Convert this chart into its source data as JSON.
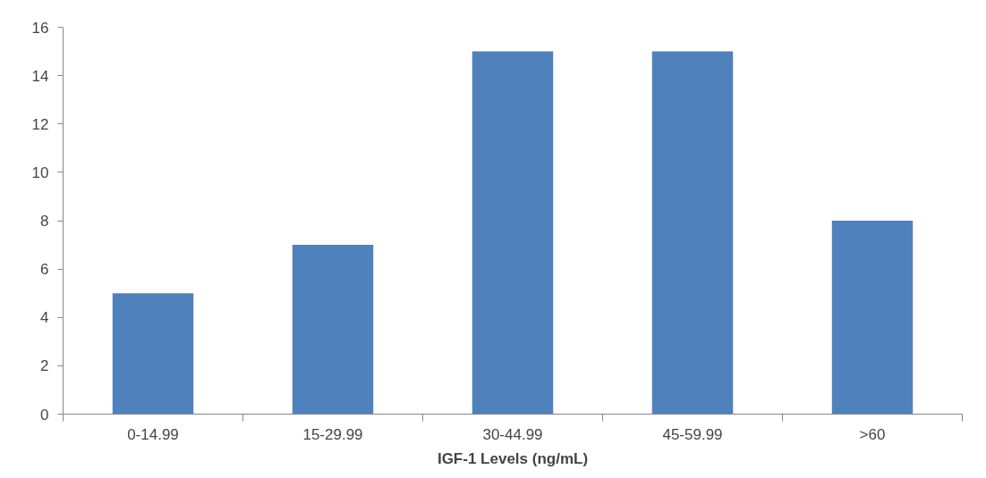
{
  "chart_data": {
    "type": "bar",
    "xlabel": "IGF-1 Levels (ng/mL)",
    "categories": [
      "0-14.99",
      "15-29.99",
      "30-44.99",
      "45-59.99",
      ">60"
    ],
    "values": [
      5,
      7,
      15,
      15,
      8
    ],
    "color": "#4f81bd",
    "ylim": [
      0,
      16
    ],
    "yticks": [
      0,
      2,
      4,
      6,
      8,
      10,
      12,
      14,
      16
    ],
    "grid": false
  }
}
